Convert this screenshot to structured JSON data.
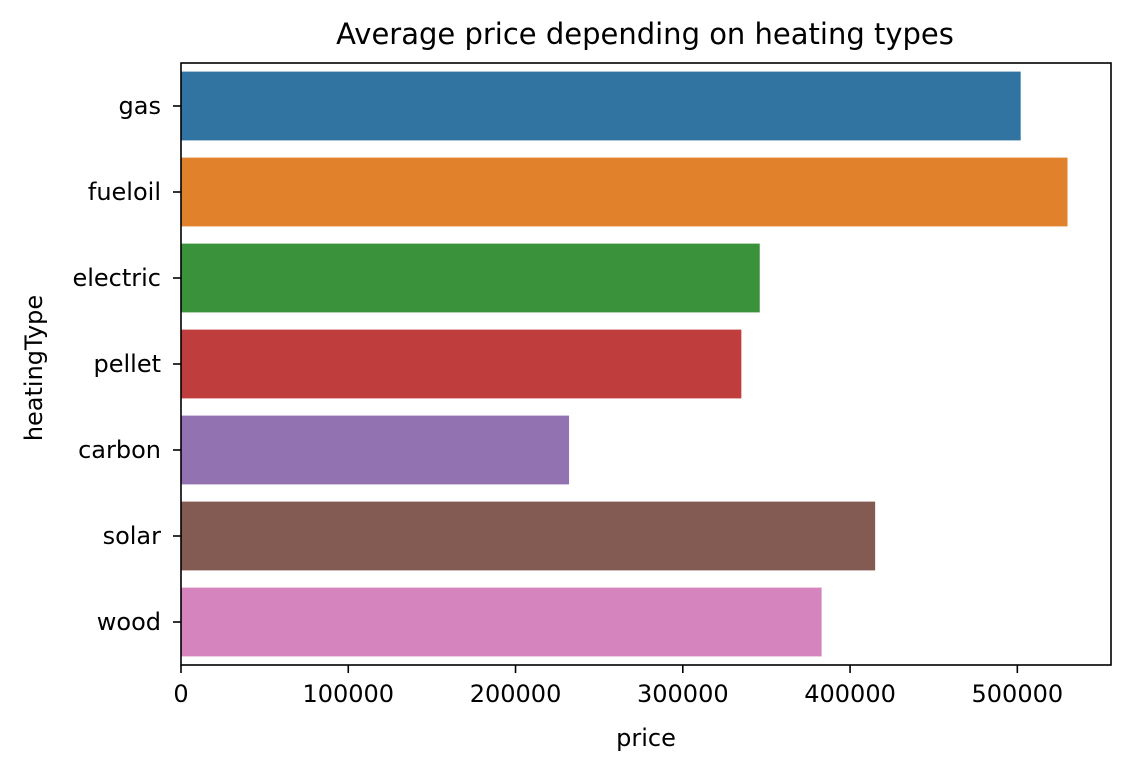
{
  "chart_data": {
    "type": "bar",
    "orientation": "horizontal",
    "title": "Average price depending on heating types",
    "xlabel": "price",
    "ylabel": "heatingType",
    "categories": [
      "gas",
      "fueloil",
      "electric",
      "pellet",
      "carbon",
      "solar",
      "wood"
    ],
    "values": [
      502000,
      530000,
      346000,
      335000,
      232000,
      415000,
      383000
    ],
    "colors": [
      "#3274a1",
      "#e1812c",
      "#3a923a",
      "#c03d3e",
      "#9372b2",
      "#845b53",
      "#d684bd"
    ],
    "xlim": [
      0,
      556000
    ],
    "xticks": [
      0,
      100000,
      200000,
      300000,
      400000,
      500000
    ],
    "xtick_labels": [
      "0",
      "100000",
      "200000",
      "300000",
      "400000",
      "500000"
    ],
    "grid": false,
    "legend": false
  }
}
